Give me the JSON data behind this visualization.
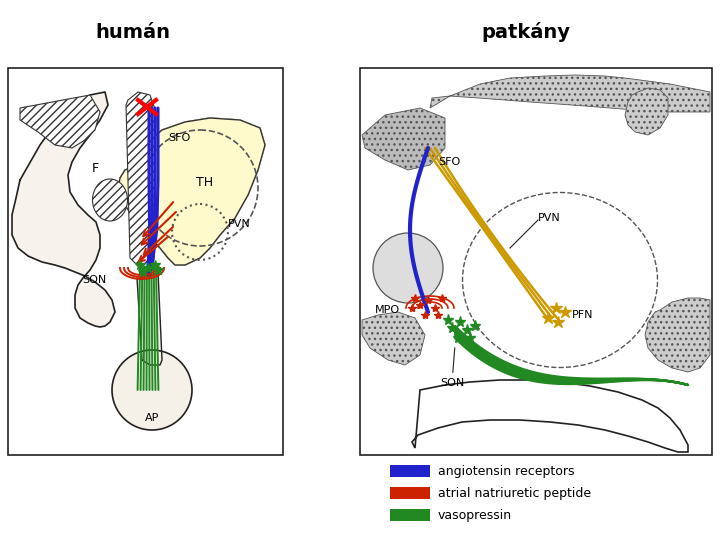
{
  "title_left": "humán",
  "title_right": "patkány",
  "title_fontsize": 14,
  "bg_color": "#ffffff",
  "legend_items": [
    {
      "label": "angiotensin receptors",
      "color": "#2222cc"
    },
    {
      "label": "atrial natriuretic peptide",
      "color": "#cc2200"
    },
    {
      "label": "vasopressin",
      "color": "#228822"
    }
  ]
}
